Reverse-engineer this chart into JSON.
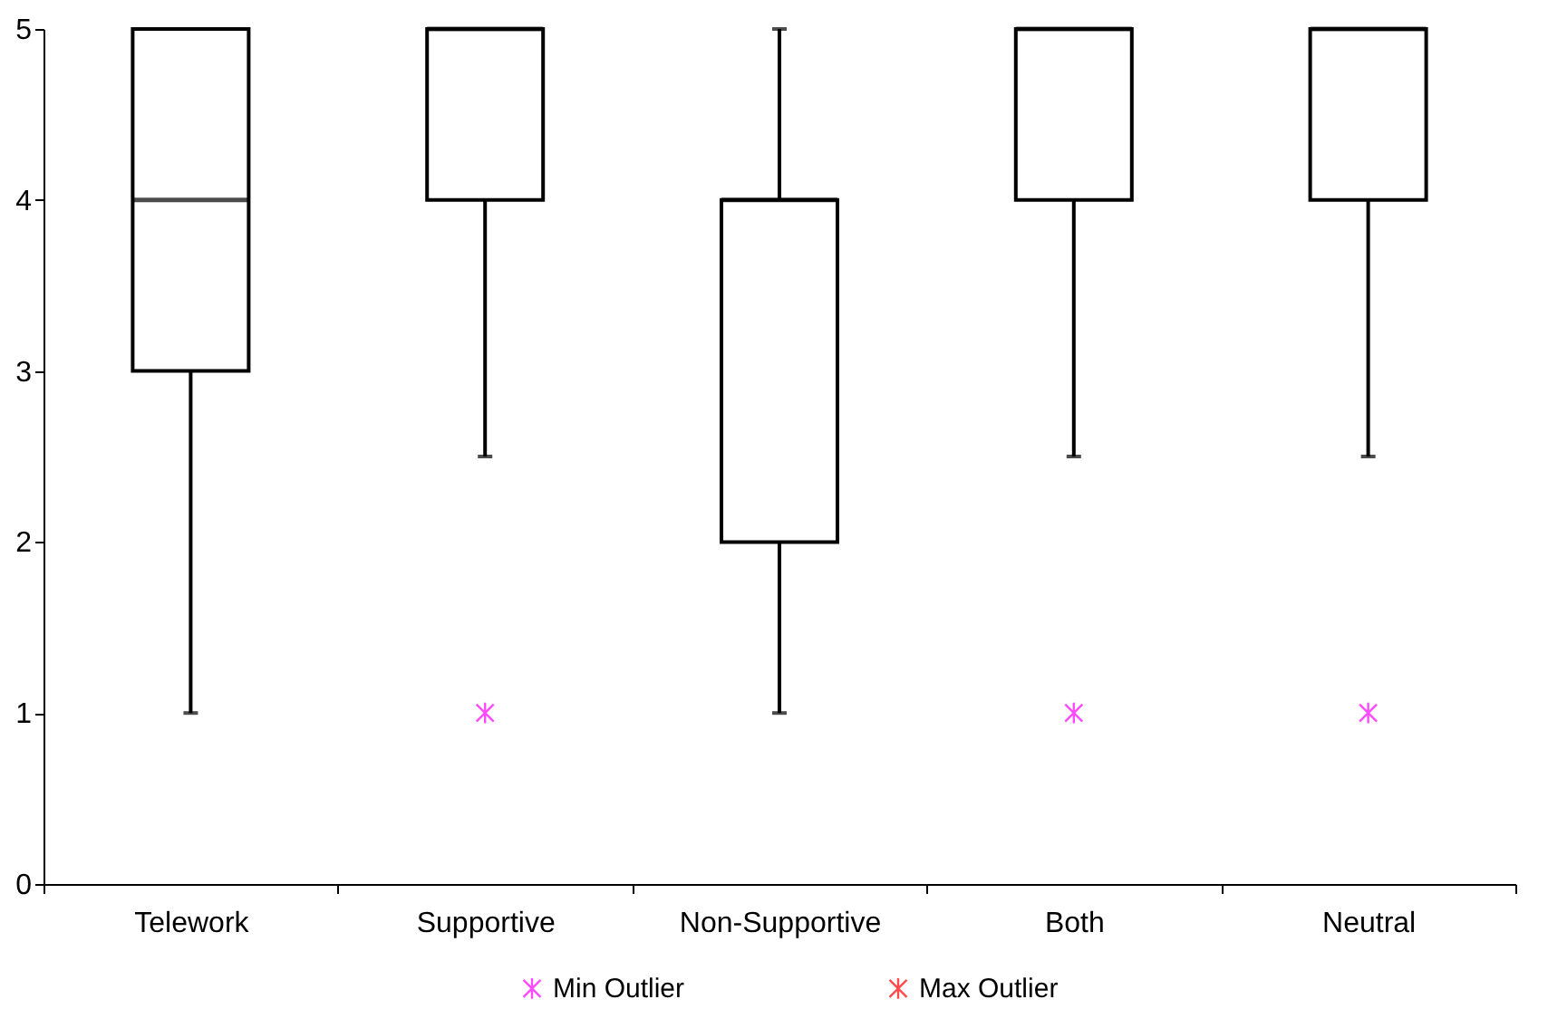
{
  "chart_data": {
    "type": "box",
    "categories": [
      "Telework",
      "Supportive",
      "Non-Supportive",
      "Both",
      "Neutral"
    ],
    "boxes": [
      {
        "low": 1,
        "q1": 3,
        "median": 4,
        "q3": 5,
        "high": 5
      },
      {
        "low": 2.5,
        "q1": 4,
        "median": 5,
        "q3": 5,
        "high": 5
      },
      {
        "low": 1,
        "q1": 2,
        "median": 4,
        "q3": 4,
        "high": 5
      },
      {
        "low": 2.5,
        "q1": 4,
        "median": 5,
        "q3": 5,
        "high": 5
      },
      {
        "low": 2.5,
        "q1": 4,
        "median": 5,
        "q3": 5,
        "high": 5
      }
    ],
    "series": [
      {
        "name": "Min Outlier",
        "type": "scatter",
        "color": "#ff00ff",
        "x": [
          "Supportive",
          "Both",
          "Neutral"
        ],
        "values": [
          1,
          1,
          1
        ]
      },
      {
        "name": "Max Outlier",
        "type": "scatter",
        "color": "#ff0000",
        "values": [
          null,
          null,
          null,
          null,
          null
        ]
      }
    ],
    "ylim": [
      0,
      5
    ],
    "yticks": [
      0,
      1,
      2,
      3,
      4,
      5
    ],
    "grid": false,
    "legend": "bottom",
    "marker": "cross"
  }
}
